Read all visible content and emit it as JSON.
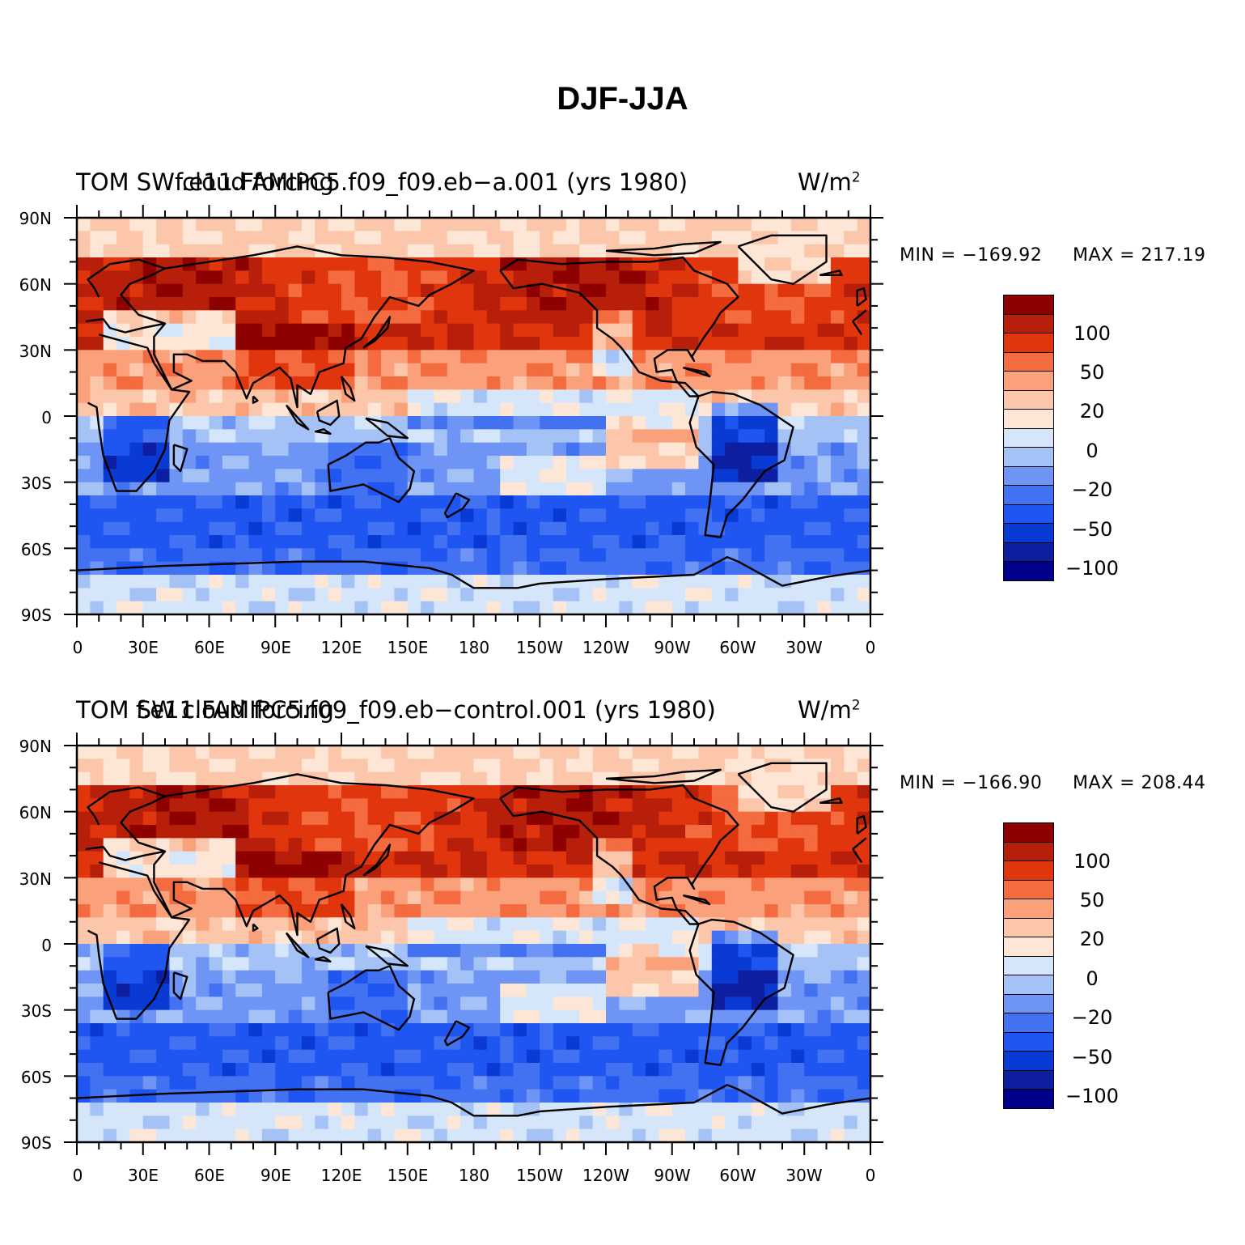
{
  "main_title": "DJF-JJA",
  "colors": {
    "land_outline": "#000000",
    "palette": [
      "#00008b",
      "#0d1fa0",
      "#0a3ad4",
      "#1f55f0",
      "#4272f2",
      "#6e95f5",
      "#a5c2f7",
      "#d5e6fb",
      "#fde6d6",
      "#fcc6ab",
      "#faa07a",
      "#f36b3e",
      "#e1360d",
      "#b81f0b",
      "#8e0101"
    ]
  },
  "axes": {
    "lat_labels": [
      "90N",
      "60N",
      "30N",
      "0",
      "30S",
      "60S",
      "90S"
    ],
    "lon_labels": [
      "0",
      "30E",
      "60E",
      "90E",
      "120E",
      "150E",
      "180",
      "150W",
      "120W",
      "90W",
      "60W",
      "30W",
      "0"
    ]
  },
  "colorbar": {
    "labels": [
      "100",
      "50",
      "20",
      "0",
      "−20",
      "−50",
      "−100"
    ]
  },
  "panels": [
    {
      "title_left": "TOM SW cloud forcing",
      "title_case": "f.e11.FAMIPC5.f09_f09.eb−a.001 (yrs 1980)",
      "units": "W/m",
      "units_sup": "2",
      "min_label": "MIN = −169.92",
      "max_label": "MAX = 217.19"
    },
    {
      "title_left": "TOM SW cloud forcing",
      "title_case": "f.e11.FAMIPC5.f09_f09.eb−control.001 (yrs 1980)",
      "units": "W/m",
      "units_sup": "2",
      "min_label": "MIN = −166.90",
      "max_label": "MAX = 208.44"
    }
  ],
  "chart_data": [
    {
      "type": "heatmap",
      "title": "TOM SW cloud forcing - f.e11.FAMIPC5.f09_f09.eb-a.001 (yrs 1980) - DJF-JJA",
      "units": "W/m2",
      "x_range": [
        0,
        360
      ],
      "y_range": [
        -90,
        90
      ],
      "contour_levels": [
        -120,
        -100,
        -80,
        -50,
        -40,
        -20,
        -10,
        0,
        10,
        20,
        40,
        50,
        80,
        100,
        120
      ],
      "min": -169.92,
      "max": 217.19
    },
    {
      "type": "heatmap",
      "title": "TOM SW cloud forcing - f.e11.FAMIPC5.f09_f09.eb-control.001 (yrs 1980) - DJF-JJA",
      "units": "W/m2",
      "x_range": [
        0,
        360
      ],
      "y_range": [
        -90,
        90
      ],
      "contour_levels": [
        -120,
        -100,
        -80,
        -50,
        -40,
        -20,
        -10,
        0,
        10,
        20,
        40,
        50,
        80,
        100,
        120
      ],
      "min": -166.9,
      "max": 208.44
    }
  ]
}
